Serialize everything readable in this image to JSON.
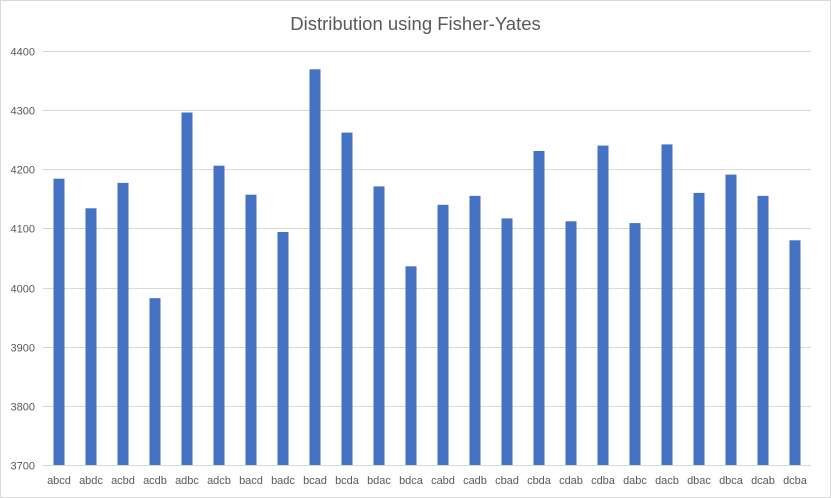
{
  "chart_data": {
    "type": "bar",
    "title": "Distribution using Fisher-Yates",
    "xlabel": "",
    "ylabel": "",
    "ylim": [
      3700,
      4400
    ],
    "yticks": [
      3700,
      3800,
      3900,
      4000,
      4100,
      4200,
      4300,
      4400
    ],
    "grid": true,
    "legend": "none",
    "bar_color": "#4472C4",
    "categories": [
      "abcd",
      "abdc",
      "acbd",
      "acdb",
      "adbc",
      "adcb",
      "bacd",
      "badc",
      "bcad",
      "bcda",
      "bdac",
      "bdca",
      "cabd",
      "cadb",
      "cbad",
      "cbda",
      "cdab",
      "cdba",
      "dabc",
      "dacb",
      "dbac",
      "dbca",
      "dcab",
      "dcba"
    ],
    "values": [
      4184,
      4134,
      4177,
      3982,
      4296,
      4206,
      4157,
      4094,
      4369,
      4262,
      4171,
      4036,
      4140,
      4155,
      4117,
      4231,
      4112,
      4240,
      4109,
      4242,
      4160,
      4191,
      4155,
      4080
    ]
  }
}
